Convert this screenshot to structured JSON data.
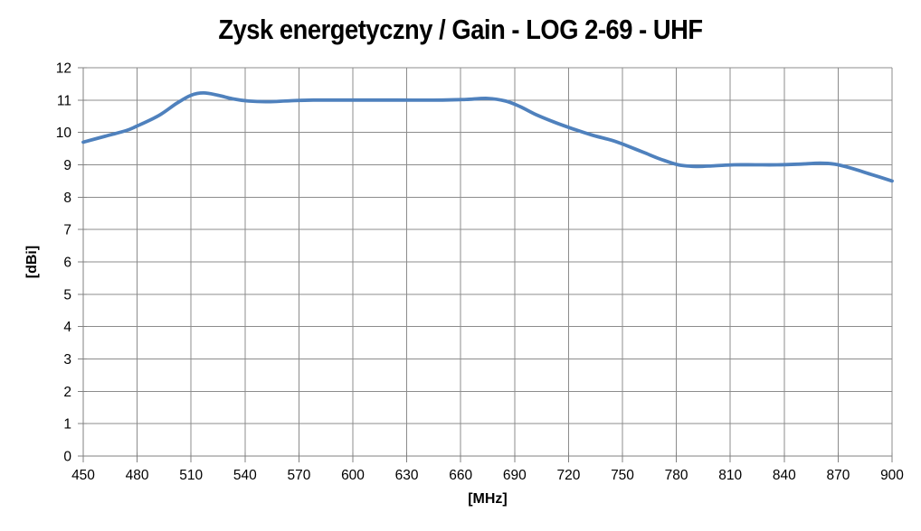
{
  "title": "Zysk energetyczny / Gain - LOG 2-69 - UHF",
  "chart_data": {
    "type": "line",
    "title": "Zysk energetyczny / Gain - LOG 2-69 - UHF",
    "xlabel": "[MHz]",
    "ylabel": "[dBi]",
    "xlim": [
      450,
      900
    ],
    "ylim": [
      0,
      12
    ],
    "x_ticks": [
      450,
      480,
      510,
      540,
      570,
      600,
      630,
      660,
      690,
      720,
      750,
      780,
      810,
      840,
      870,
      900
    ],
    "y_ticks": [
      0,
      1,
      2,
      3,
      4,
      5,
      6,
      7,
      8,
      9,
      10,
      11,
      12
    ],
    "grid": true,
    "legend_position": "none",
    "series": [
      {
        "name": "Gain LOG 2-69 UHF",
        "color": "#4F81BD",
        "smooth": true,
        "marker": "none",
        "points": [
          [
            450,
            9.7
          ],
          [
            462,
            9.88
          ],
          [
            474,
            10.06
          ],
          [
            480,
            10.2
          ],
          [
            492,
            10.52
          ],
          [
            502,
            10.9
          ],
          [
            510,
            11.15
          ],
          [
            517,
            11.22
          ],
          [
            525,
            11.15
          ],
          [
            533,
            11.04
          ],
          [
            542,
            10.97
          ],
          [
            553,
            10.95
          ],
          [
            565,
            10.98
          ],
          [
            578,
            11.0
          ],
          [
            600,
            11.0
          ],
          [
            625,
            11.0
          ],
          [
            650,
            11.0
          ],
          [
            663,
            11.02
          ],
          [
            675,
            11.05
          ],
          [
            685,
            10.97
          ],
          [
            693,
            10.8
          ],
          [
            702,
            10.55
          ],
          [
            712,
            10.32
          ],
          [
            722,
            10.12
          ],
          [
            733,
            9.92
          ],
          [
            744,
            9.76
          ],
          [
            752,
            9.6
          ],
          [
            762,
            9.38
          ],
          [
            771,
            9.18
          ],
          [
            781,
            9.0
          ],
          [
            791,
            8.95
          ],
          [
            801,
            8.97
          ],
          [
            812,
            9.0
          ],
          [
            824,
            9.0
          ],
          [
            836,
            9.0
          ],
          [
            848,
            9.02
          ],
          [
            860,
            9.05
          ],
          [
            868,
            9.02
          ],
          [
            877,
            8.9
          ],
          [
            888,
            8.71
          ],
          [
            900,
            8.5
          ]
        ],
        "values_at_ticks": [
          9.7,
          10.2,
          11.2,
          11.0,
          11.0,
          11.0,
          11.0,
          11.0,
          10.9,
          10.1,
          9.6,
          9.0,
          9.0,
          9.0,
          9.0,
          8.5
        ]
      }
    ]
  },
  "style": {
    "line_color": "#4F81BD",
    "grid_color": "#8C8C8C",
    "axis_color": "#808080",
    "text_color": "#000000",
    "title_color": "#000000",
    "background": "#FFFFFF"
  }
}
